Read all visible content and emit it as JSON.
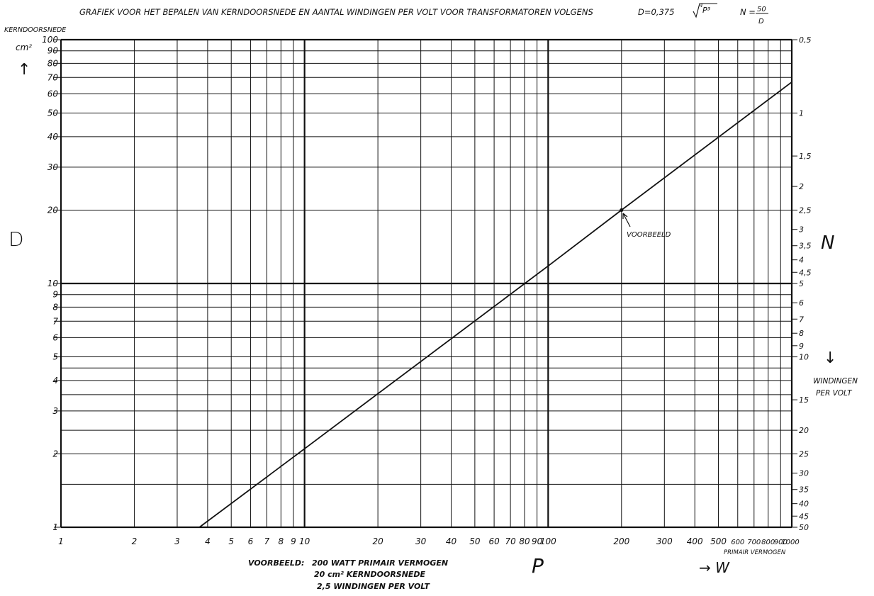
{
  "title": "GRAFIEK VOOR HET BEPALEN VAN KERNDOORSNEDE EN AANTAL WINDINGEN PER VOLT VOOR TRANSFORMATOREN VOLGENS",
  "formula_d": "D=0,375",
  "formula_d_root_index": "4",
  "formula_d_radicand": "P³",
  "formula_n_prefix": "N =",
  "formula_n_numerator": "50",
  "formula_n_denominator": "D",
  "left_axis": {
    "title": "KERNDOORSNEDE",
    "unit": "cm²",
    "symbol": "D",
    "arrow": "↑"
  },
  "right_axis": {
    "symbol": "N",
    "arrow": "↓",
    "title_line1": "WINDINGEN",
    "title_line2": "PER VOLT"
  },
  "bottom_axis": {
    "symbol": "P",
    "arrow_label": "→ W",
    "sub_label": "PRIMAIR VERMOGEN"
  },
  "example": {
    "label": "VOORBEELD:",
    "line1": "200 WATT PRIMAIR VERMOGEN",
    "line2": "20 cm² KERNDOORSNEDE",
    "line3": "2,5 WINDINGEN PER VOLT",
    "marker_label": "VOORBEELD"
  },
  "chart_data": {
    "type": "line",
    "title": "GRAFIEK VOOR HET BEPALEN VAN KERNDOORSNEDE EN AANTAL WINDINGEN PER VOLT VOOR TRANSFORMATOREN VOLGENS D=0,375 ⁴√P³   N = 50/D",
    "xlabel": "P",
    "ylabel": "KERNDOORSNEDE cm²",
    "y2label": "WINDINGEN PER VOLT",
    "xscale": "log",
    "yscale": "log",
    "xlim": [
      1,
      1000
    ],
    "ylim": [
      1,
      100
    ],
    "grid": true,
    "x_ticks": [
      {
        "v": 1,
        "t": "1"
      },
      {
        "v": 2,
        "t": "2"
      },
      {
        "v": 3,
        "t": "3"
      },
      {
        "v": 4,
        "t": "4"
      },
      {
        "v": 5,
        "t": "5"
      },
      {
        "v": 6,
        "t": "6"
      },
      {
        "v": 7,
        "t": "7"
      },
      {
        "v": 8,
        "t": "8"
      },
      {
        "v": 9,
        "t": "9"
      },
      {
        "v": 10,
        "t": "10"
      },
      {
        "v": 20,
        "t": "20"
      },
      {
        "v": 30,
        "t": "30"
      },
      {
        "v": 40,
        "t": "40"
      },
      {
        "v": 50,
        "t": "50"
      },
      {
        "v": 60,
        "t": "60"
      },
      {
        "v": 70,
        "t": "70"
      },
      {
        "v": 80,
        "t": "80"
      },
      {
        "v": 90,
        "t": "90"
      },
      {
        "v": 100,
        "t": "100"
      },
      {
        "v": 200,
        "t": "200"
      },
      {
        "v": 300,
        "t": "300"
      },
      {
        "v": 400,
        "t": "400"
      },
      {
        "v": 500,
        "t": "500"
      },
      {
        "v": 600,
        "t": "600"
      },
      {
        "v": 700,
        "t": "700"
      },
      {
        "v": 800,
        "t": "800"
      },
      {
        "v": 900,
        "t": "900"
      },
      {
        "v": 1000,
        "t": "1000"
      }
    ],
    "y_ticks": [
      {
        "v": 1,
        "t": "1"
      },
      {
        "v": 2,
        "t": "2"
      },
      {
        "v": 3,
        "t": "3"
      },
      {
        "v": 4,
        "t": "4"
      },
      {
        "v": 5,
        "t": "5"
      },
      {
        "v": 6,
        "t": "6"
      },
      {
        "v": 7,
        "t": "7"
      },
      {
        "v": 8,
        "t": "8"
      },
      {
        "v": 9,
        "t": "9"
      },
      {
        "v": 10,
        "t": "10"
      },
      {
        "v": 20,
        "t": "20"
      },
      {
        "v": 30,
        "t": "30"
      },
      {
        "v": 40,
        "t": "40"
      },
      {
        "v": 50,
        "t": "50"
      },
      {
        "v": 60,
        "t": "60"
      },
      {
        "v": 70,
        "t": "70"
      },
      {
        "v": 80,
        "t": "80"
      },
      {
        "v": 90,
        "t": "90"
      },
      {
        "v": 100,
        "t": "100"
      }
    ],
    "y_grid_extra": [
      1.5,
      2.5,
      3.5,
      4.5
    ],
    "n_ticks": [
      {
        "n": 0.5,
        "t": "0,5"
      },
      {
        "n": 1,
        "t": "1"
      },
      {
        "n": 1.5,
        "t": "1,5"
      },
      {
        "n": 2,
        "t": "2"
      },
      {
        "n": 2.5,
        "t": "2,5"
      },
      {
        "n": 3,
        "t": "3"
      },
      {
        "n": 3.5,
        "t": "3,5"
      },
      {
        "n": 4,
        "t": "4"
      },
      {
        "n": 4.5,
        "t": "4,5"
      },
      {
        "n": 5,
        "t": "5"
      },
      {
        "n": 6,
        "t": "6"
      },
      {
        "n": 7,
        "t": "7"
      },
      {
        "n": 8,
        "t": "8"
      },
      {
        "n": 9,
        "t": "9"
      },
      {
        "n": 10,
        "t": "10"
      },
      {
        "n": 15,
        "t": "15"
      },
      {
        "n": 20,
        "t": "20"
      },
      {
        "n": 25,
        "t": "25"
      },
      {
        "n": 30,
        "t": "30"
      },
      {
        "n": 35,
        "t": "35"
      },
      {
        "n": 40,
        "t": "40"
      },
      {
        "n": 45,
        "t": "45"
      },
      {
        "n": 50,
        "t": "50"
      }
    ],
    "series": [
      {
        "x": [
          3.7,
          10,
          100,
          200,
          1000
        ],
        "y": [
          1.0,
          2.1,
          11.8,
          20,
          67
        ]
      }
    ],
    "example_point": {
      "x": 200,
      "y": 20,
      "n": 2.5
    }
  }
}
